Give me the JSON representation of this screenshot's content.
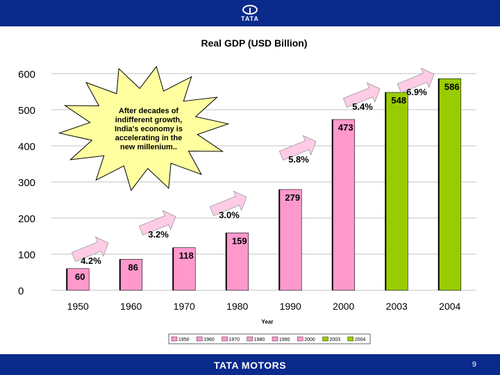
{
  "header": {
    "logo_text": "TATA"
  },
  "footer": {
    "brand": "TATA MOTORS",
    "page_number": "9"
  },
  "chart_data": {
    "type": "bar",
    "title": "Real GDP (USD Billion)",
    "xlabel": "Year",
    "ylabel": "",
    "ylim": [
      0,
      600
    ],
    "yticks": [
      0,
      100,
      200,
      300,
      400,
      500,
      600
    ],
    "grid": true,
    "categories": [
      "1950",
      "1960",
      "1970",
      "1980",
      "1990",
      "2000",
      "2003",
      "2004"
    ],
    "values": [
      60,
      86,
      118,
      159,
      279,
      473,
      548,
      586
    ],
    "data_labels": [
      "60",
      "86",
      "118",
      "159",
      "279",
      "473",
      "548",
      "586"
    ],
    "bar_colors": [
      "#ff99cc",
      "#ff99cc",
      "#ff99cc",
      "#ff99cc",
      "#ff99cc",
      "#ff99cc",
      "#99cc00",
      "#99cc00"
    ],
    "growth_labels": [
      "4.2%",
      "3.2%",
      "3.0%",
      "5.8%",
      "5.4%",
      "6.9%"
    ],
    "legend": {
      "placement": "bottom",
      "entries": [
        "1950",
        "1960",
        "1970",
        "1980",
        "1990",
        "2000",
        "2003",
        "2004"
      ]
    },
    "callout": "After decades of indifferent growth, India's economy is accelerating in the new millenium.."
  }
}
